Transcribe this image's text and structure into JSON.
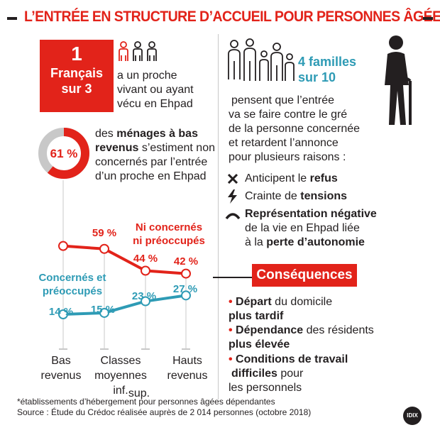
{
  "title": "L’ENTRÉE EN STRUCTURE D’ACCUEIL POUR PERSONNES ÂGÉES",
  "left_top": {
    "stat_number": "1",
    "stat_line1": "Français",
    "stat_line2": "sur 3",
    "text": [
      "a un proche",
      "vivant ou ayant",
      "vécu en Ehpad"
    ]
  },
  "left_mid": {
    "donut_percent": "61 %",
    "donut_value": 61,
    "text_pre": "des ",
    "text_bold": "ménages à bas revenus",
    "text_post": " s’estiment non concernés par l’entrée d’un proche en Ehpad"
  },
  "chart_data": {
    "type": "line",
    "categories": [
      "Bas revenus",
      "Classes moyennes inf.",
      "Classes moyennes sup.",
      "Hauts revenus"
    ],
    "series": [
      {
        "name": "Ni concernés ni préoccupés",
        "values": [
          61,
          59,
          44,
          42
        ],
        "labels": [
          "",
          "59 %",
          "44 %",
          "42 %"
        ],
        "color": "#e2231a"
      },
      {
        "name": "Concernés et préoccupés",
        "values": [
          14,
          15,
          23,
          27
        ],
        "labels": [
          "14 %",
          "15 %",
          "23 %",
          "27 %"
        ],
        "color": "#2e9bb5"
      }
    ],
    "category_labels": [
      [
        "Bas",
        "revenus"
      ],
      [
        "Classes",
        "moyennes",
        "inf."
      ],
      [
        "sup."
      ],
      [
        "Hauts",
        "revenus"
      ]
    ],
    "legend_red": [
      "Ni concernés",
      "ni préoccupés"
    ],
    "legend_teal": [
      "Concernés et",
      "préoccupés"
    ]
  },
  "right": {
    "families_line1": "4 familles",
    "families_line2": "sur 10",
    "intro": [
      "pensent que l’entrée",
      "va se faire contre le gré",
      "de la personne concernée",
      "et retardent l’annonce",
      "pour plusieurs raisons :"
    ],
    "reasons": [
      {
        "icon": "cross-icon",
        "pre": "Anticipent le ",
        "bold": "refus",
        "lines_after": []
      },
      {
        "icon": "lightning-icon",
        "pre": "Crainte de ",
        "bold": "tensions",
        "lines_after": []
      },
      {
        "icon": "arc-icon",
        "pre": "",
        "bold": "Représentation négative",
        "lines_after": [
          "de la vie en Ehpad liée"
        ]
      }
    ],
    "reason3_line3_pre": "à la ",
    "reason3_line3_bold": "perte d’autonomie",
    "consequences_label": "Conséquences",
    "consequences": [
      {
        "bold1": "Départ",
        "rest1": " du domicile",
        "bold2": "plus tardif",
        "rest2": ""
      },
      {
        "bold1": "Dépendance",
        "rest1": " des résidents",
        "bold2": "plus élevée",
        "rest2": ""
      },
      {
        "bold1": "Conditions de travail",
        "rest1": "",
        "bold2": "difficiles",
        "rest2": " pour",
        "line3": "les personnels"
      }
    ]
  },
  "footnote1": "*établissements d’hébergement pour personnes âgées dépendantes",
  "footnote2": "Source : Étude du Crédoc réalisée auprès de 2 014 personnes (octobre 2018)",
  "logo": "IDIX"
}
